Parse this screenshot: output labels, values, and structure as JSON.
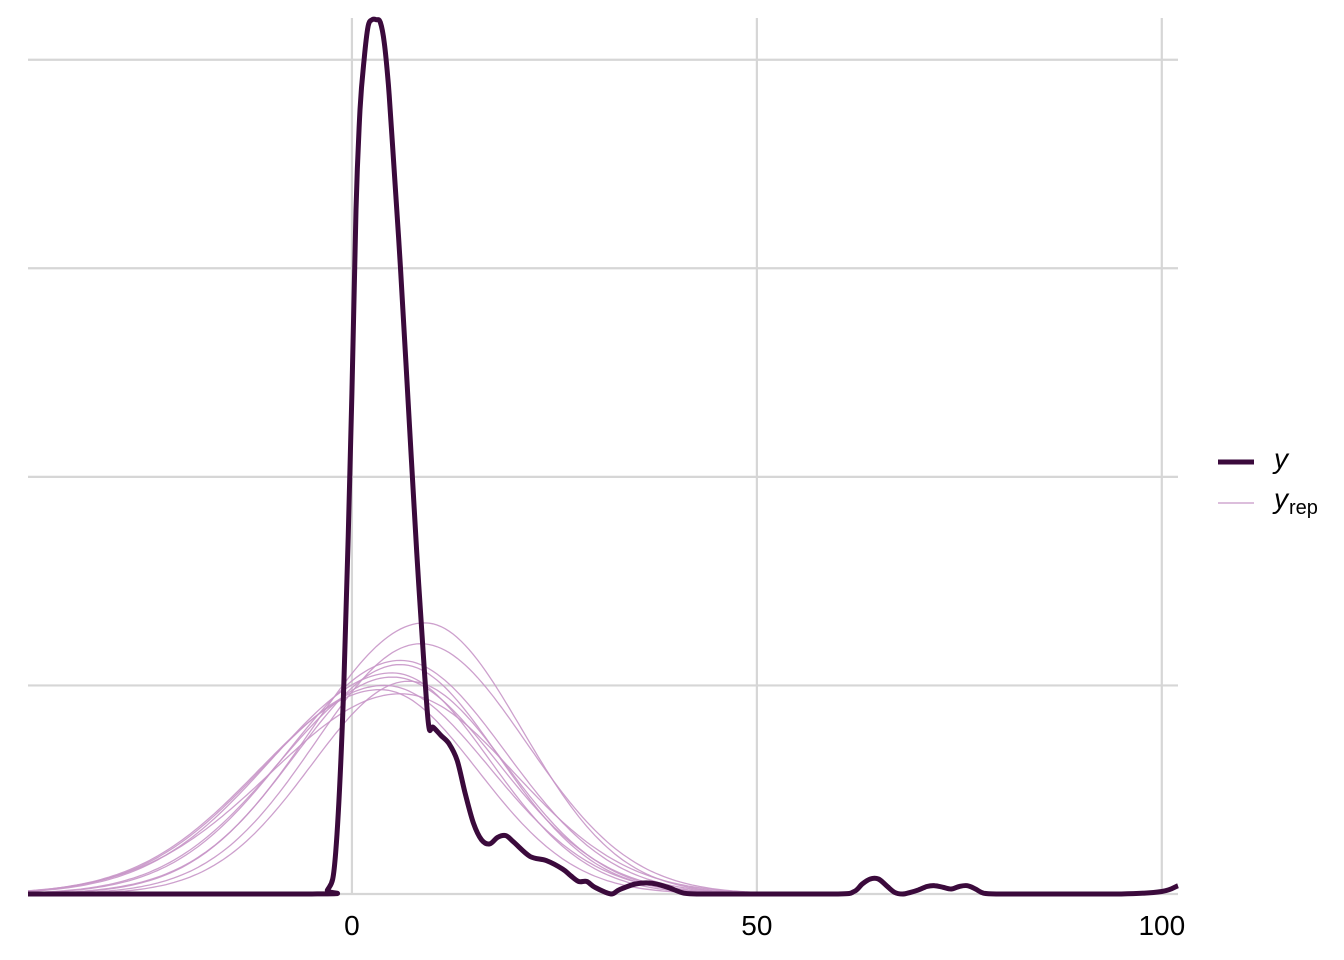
{
  "chart_data": {
    "type": "line",
    "title": "",
    "xlabel": "",
    "ylabel": "",
    "xlim": [
      -40,
      102
    ],
    "ylim": [
      0,
      1.05
    ],
    "x_ticks": [
      0,
      50,
      100
    ],
    "x_tick_labels": [
      "0",
      "50",
      "100"
    ],
    "y_gridlines": [
      0.25,
      0.5,
      0.75,
      1.0
    ],
    "y_tick_labels_shown": false,
    "grid": true,
    "legend_position": "right",
    "colors": {
      "y": "#3b0a3c",
      "yrep": "#c896c8",
      "grid": "#d6d6d6"
    },
    "legend": [
      {
        "key": "y",
        "label": "y",
        "subscript": ""
      },
      {
        "key": "yrep",
        "label": "y",
        "subscript": "rep"
      }
    ],
    "series_y": {
      "name": "y",
      "x": [
        -40,
        -5,
        -3,
        -2,
        -1,
        0,
        0.5,
        1,
        1.5,
        2,
        2.5,
        3,
        3.5,
        4,
        4.5,
        5,
        6,
        7,
        8,
        9,
        9.5,
        10,
        11,
        12,
        13,
        14,
        15,
        16,
        17,
        18,
        19,
        20,
        22,
        24,
        26,
        27,
        28,
        29,
        30,
        32,
        33,
        35,
        37,
        39,
        41,
        43,
        50,
        60,
        62,
        63,
        64,
        65,
        66,
        67,
        68,
        69,
        70,
        71,
        72,
        73,
        74,
        75,
        76,
        77,
        78,
        80,
        85,
        95,
        100,
        102
      ],
      "y": [
        0,
        0,
        0.005,
        0.05,
        0.25,
        0.6,
        0.82,
        0.94,
        1.0,
        1.04,
        1.048,
        1.048,
        1.045,
        1.02,
        0.97,
        0.9,
        0.75,
        0.58,
        0.41,
        0.26,
        0.2,
        0.2,
        0.19,
        0.18,
        0.16,
        0.12,
        0.085,
        0.065,
        0.06,
        0.068,
        0.07,
        0.062,
        0.045,
        0.04,
        0.03,
        0.022,
        0.015,
        0.015,
        0.008,
        0.0,
        0.005,
        0.012,
        0.013,
        0.008,
        0.001,
        0,
        0,
        0,
        0.003,
        0.012,
        0.018,
        0.018,
        0.01,
        0.002,
        0,
        0.002,
        0.005,
        0.009,
        0.01,
        0.008,
        0.006,
        0.009,
        0.01,
        0.006,
        0.001,
        0,
        0,
        0,
        0.003,
        0.01
      ]
    },
    "series_yrep": [
      {
        "peak": 0.325,
        "mu": 9,
        "sl": 14,
        "sr": 12
      },
      {
        "peak": 0.3,
        "mu": 8.5,
        "sl": 13,
        "sr": 13
      },
      {
        "peak": 0.28,
        "mu": 6,
        "sl": 14,
        "sr": 13
      },
      {
        "peak": 0.275,
        "mu": 6,
        "sl": 13,
        "sr": 12
      },
      {
        "peak": 0.265,
        "mu": 5,
        "sl": 15,
        "sr": 12
      },
      {
        "peak": 0.26,
        "mu": 5,
        "sl": 14,
        "sr": 13
      },
      {
        "peak": 0.255,
        "mu": 7,
        "sl": 12,
        "sr": 12
      },
      {
        "peak": 0.25,
        "mu": 4,
        "sl": 15,
        "sr": 13
      },
      {
        "peak": 0.245,
        "mu": 3.5,
        "sl": 15,
        "sr": 12
      },
      {
        "peak": 0.24,
        "mu": 6,
        "sl": 16,
        "sr": 14
      }
    ]
  }
}
